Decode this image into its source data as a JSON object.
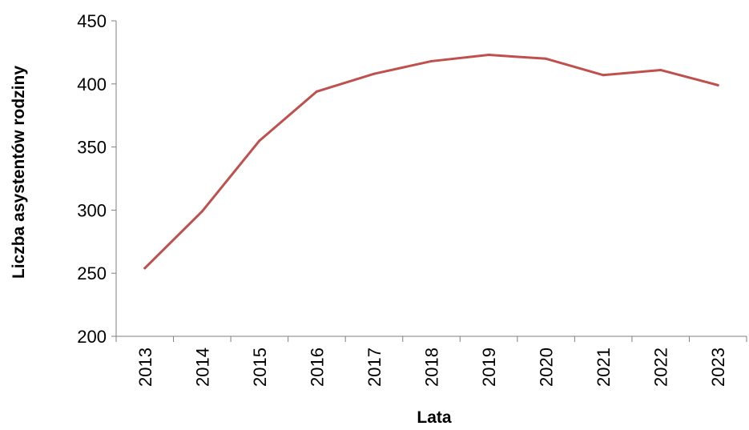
{
  "chart_data": {
    "type": "line",
    "title": "",
    "xlabel": "Lata",
    "ylabel": "Liczba asystentów rodziny",
    "categories": [
      "2013",
      "2014",
      "2015",
      "2016",
      "2017",
      "2018",
      "2019",
      "2020",
      "2021",
      "2022",
      "2023"
    ],
    "series": [
      {
        "values": [
          254,
          299,
          355,
          394,
          408,
          418,
          423,
          420,
          407,
          411,
          399
        ],
        "color": "#c0504d"
      }
    ],
    "ylim": [
      200,
      450
    ],
    "yticks": [
      200,
      250,
      300,
      350,
      400,
      450
    ],
    "ytick_labels": [
      "200",
      "250",
      "300",
      "350",
      "400",
      "450"
    ],
    "grid": false,
    "legend": "none",
    "colors": {
      "axis": "#7f7f7f",
      "text": "#000000"
    }
  }
}
